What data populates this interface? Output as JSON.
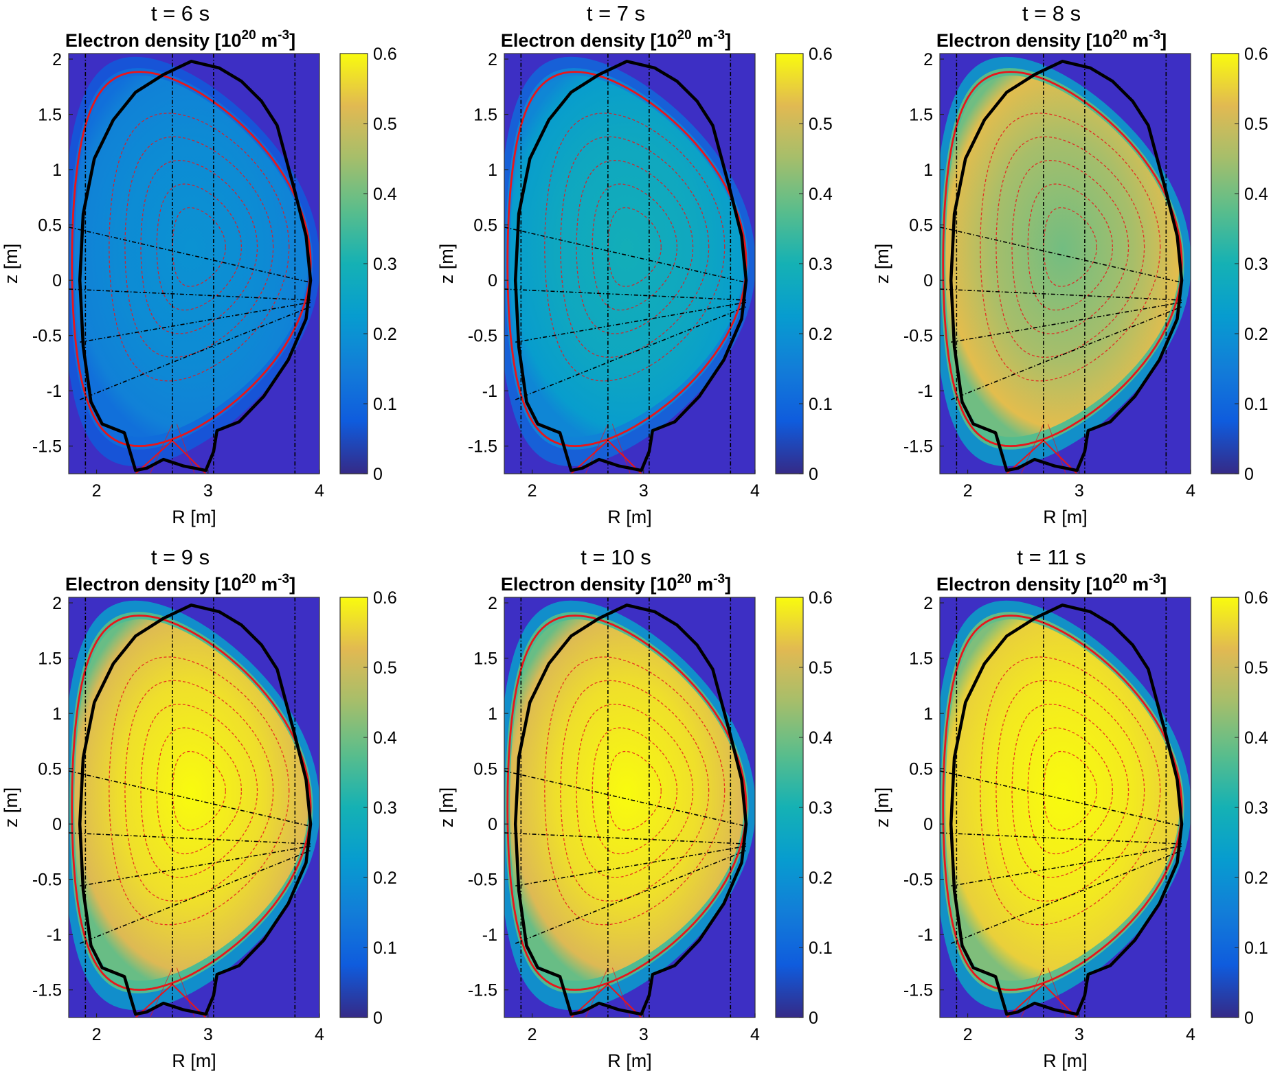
{
  "colors": {
    "core_dark": "#31309f",
    "outer_background": "#3d2fc4",
    "boundary": "#e8161b",
    "wall": "#000000",
    "chord": "#000000"
  },
  "colormap": "parula",
  "chart_data": [
    {
      "type": "heatmap",
      "time_title": "t = 6 s",
      "title_text": "Electron density [10",
      "title_exp1": "20",
      "title_unit": " m",
      "title_exp2": "-3",
      "title_close": "]",
      "xlabel": "R [m]",
      "ylabel": "z [m]",
      "xlim": [
        1.75,
        4.0
      ],
      "ylim": [
        -1.75,
        2.05
      ],
      "x_ticks": [
        "2",
        "3",
        "4"
      ],
      "y_ticks": [
        "-1.5",
        "-1",
        "-0.5",
        "0",
        "0.5",
        "1",
        "1.5",
        "2"
      ],
      "colorbar_ticks": [
        "0",
        "0.1",
        "0.2",
        "0.3",
        "0.4",
        "0.5",
        "0.6"
      ],
      "clim": [
        0,
        0.6
      ],
      "core_density": 0.2,
      "edge_density": 0.16
    },
    {
      "type": "heatmap",
      "time_title": "t = 7 s",
      "title_text": "Electron density [10",
      "title_exp1": "20",
      "title_unit": " m",
      "title_exp2": "-3",
      "title_close": "]",
      "xlabel": "R [m]",
      "ylabel": "z [m]",
      "xlim": [
        1.75,
        4.0
      ],
      "ylim": [
        -1.75,
        2.05
      ],
      "x_ticks": [
        "2",
        "3",
        "4"
      ],
      "y_ticks": [
        "-1.5",
        "-1",
        "-0.5",
        "0",
        "0.5",
        "1",
        "1.5",
        "2"
      ],
      "colorbar_ticks": [
        "0",
        "0.1",
        "0.2",
        "0.3",
        "0.4",
        "0.5",
        "0.6"
      ],
      "clim": [
        0,
        0.6
      ],
      "core_density": 0.29,
      "edge_density": 0.23
    },
    {
      "type": "heatmap",
      "time_title": "t = 8 s",
      "title_text": "Electron density [10",
      "title_exp1": "20",
      "title_unit": " m",
      "title_exp2": "-3",
      "title_close": "]",
      "xlabel": "R [m]",
      "ylabel": "z [m]",
      "xlim": [
        1.75,
        4.0
      ],
      "ylim": [
        -1.75,
        2.05
      ],
      "x_ticks": [
        "2",
        "3",
        "4"
      ],
      "y_ticks": [
        "-1.5",
        "-1",
        "-0.5",
        "0",
        "0.5",
        "1",
        "1.5",
        "2"
      ],
      "colorbar_ticks": [
        "0",
        "0.1",
        "0.2",
        "0.3",
        "0.4",
        "0.5",
        "0.6"
      ],
      "clim": [
        0,
        0.6
      ],
      "core_density": 0.4,
      "edge_density": 0.53
    },
    {
      "type": "heatmap",
      "time_title": "t = 9 s",
      "title_text": "Electron density [10",
      "title_exp1": "20",
      "title_unit": " m",
      "title_exp2": "-3",
      "title_close": "]",
      "xlabel": "R [m]",
      "ylabel": "z [m]",
      "xlim": [
        1.75,
        4.0
      ],
      "ylim": [
        -1.75,
        2.05
      ],
      "x_ticks": [
        "2",
        "3",
        "4"
      ],
      "y_ticks": [
        "-1.5",
        "-1",
        "-0.5",
        "0",
        "0.5",
        "1",
        "1.5",
        "2"
      ],
      "colorbar_ticks": [
        "0",
        "0.1",
        "0.2",
        "0.3",
        "0.4",
        "0.5",
        "0.6"
      ],
      "clim": [
        0,
        0.6
      ],
      "core_density": 0.6,
      "edge_density": 0.52
    },
    {
      "type": "heatmap",
      "time_title": "t = 10 s",
      "title_text": "Electron density [10",
      "title_exp1": "20",
      "title_unit": " m",
      "title_exp2": "-3",
      "title_close": "]",
      "xlabel": "R [m]",
      "ylabel": "z [m]",
      "xlim": [
        1.75,
        4.0
      ],
      "ylim": [
        -1.75,
        2.05
      ],
      "x_ticks": [
        "2",
        "3",
        "4"
      ],
      "y_ticks": [
        "-1.5",
        "-1",
        "-0.5",
        "0",
        "0.5",
        "1",
        "1.5",
        "2"
      ],
      "colorbar_ticks": [
        "0",
        "0.1",
        "0.2",
        "0.3",
        "0.4",
        "0.5",
        "0.6"
      ],
      "clim": [
        0,
        0.6
      ],
      "core_density": 0.6,
      "edge_density": 0.52
    },
    {
      "type": "heatmap",
      "time_title": "t = 11 s",
      "title_text": "Electron density [10",
      "title_exp1": "20",
      "title_unit": " m",
      "title_exp2": "-3",
      "title_close": "]",
      "xlabel": "R [m]",
      "ylabel": "z [m]",
      "xlim": [
        1.75,
        4.0
      ],
      "ylim": [
        -1.75,
        2.05
      ],
      "x_ticks": [
        "2",
        "3",
        "4"
      ],
      "y_ticks": [
        "-1.5",
        "-1",
        "-0.5",
        "0",
        "0.5",
        "1",
        "1.5",
        "2"
      ],
      "colorbar_ticks": [
        "0",
        "0.1",
        "0.2",
        "0.3",
        "0.4",
        "0.5",
        "0.6"
      ],
      "clim": [
        0,
        0.6
      ],
      "core_density": 0.6,
      "edge_density": 0.55
    }
  ]
}
